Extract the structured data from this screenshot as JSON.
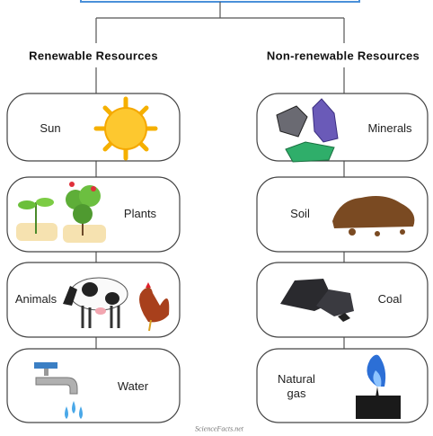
{
  "header": {
    "left": "Renewable Resources",
    "right": "Non-renewable Resources"
  },
  "nodes": {
    "renewable": [
      {
        "label": "Sun"
      },
      {
        "label": "Plants"
      },
      {
        "label": "Animals"
      },
      {
        "label": "Water"
      }
    ],
    "non_renewable": [
      {
        "label": "Minerals"
      },
      {
        "label": "Soil"
      },
      {
        "label": "Coal"
      },
      {
        "label": "Natural gas"
      }
    ]
  },
  "footer": {
    "credit": "ScienceFacts.net"
  }
}
